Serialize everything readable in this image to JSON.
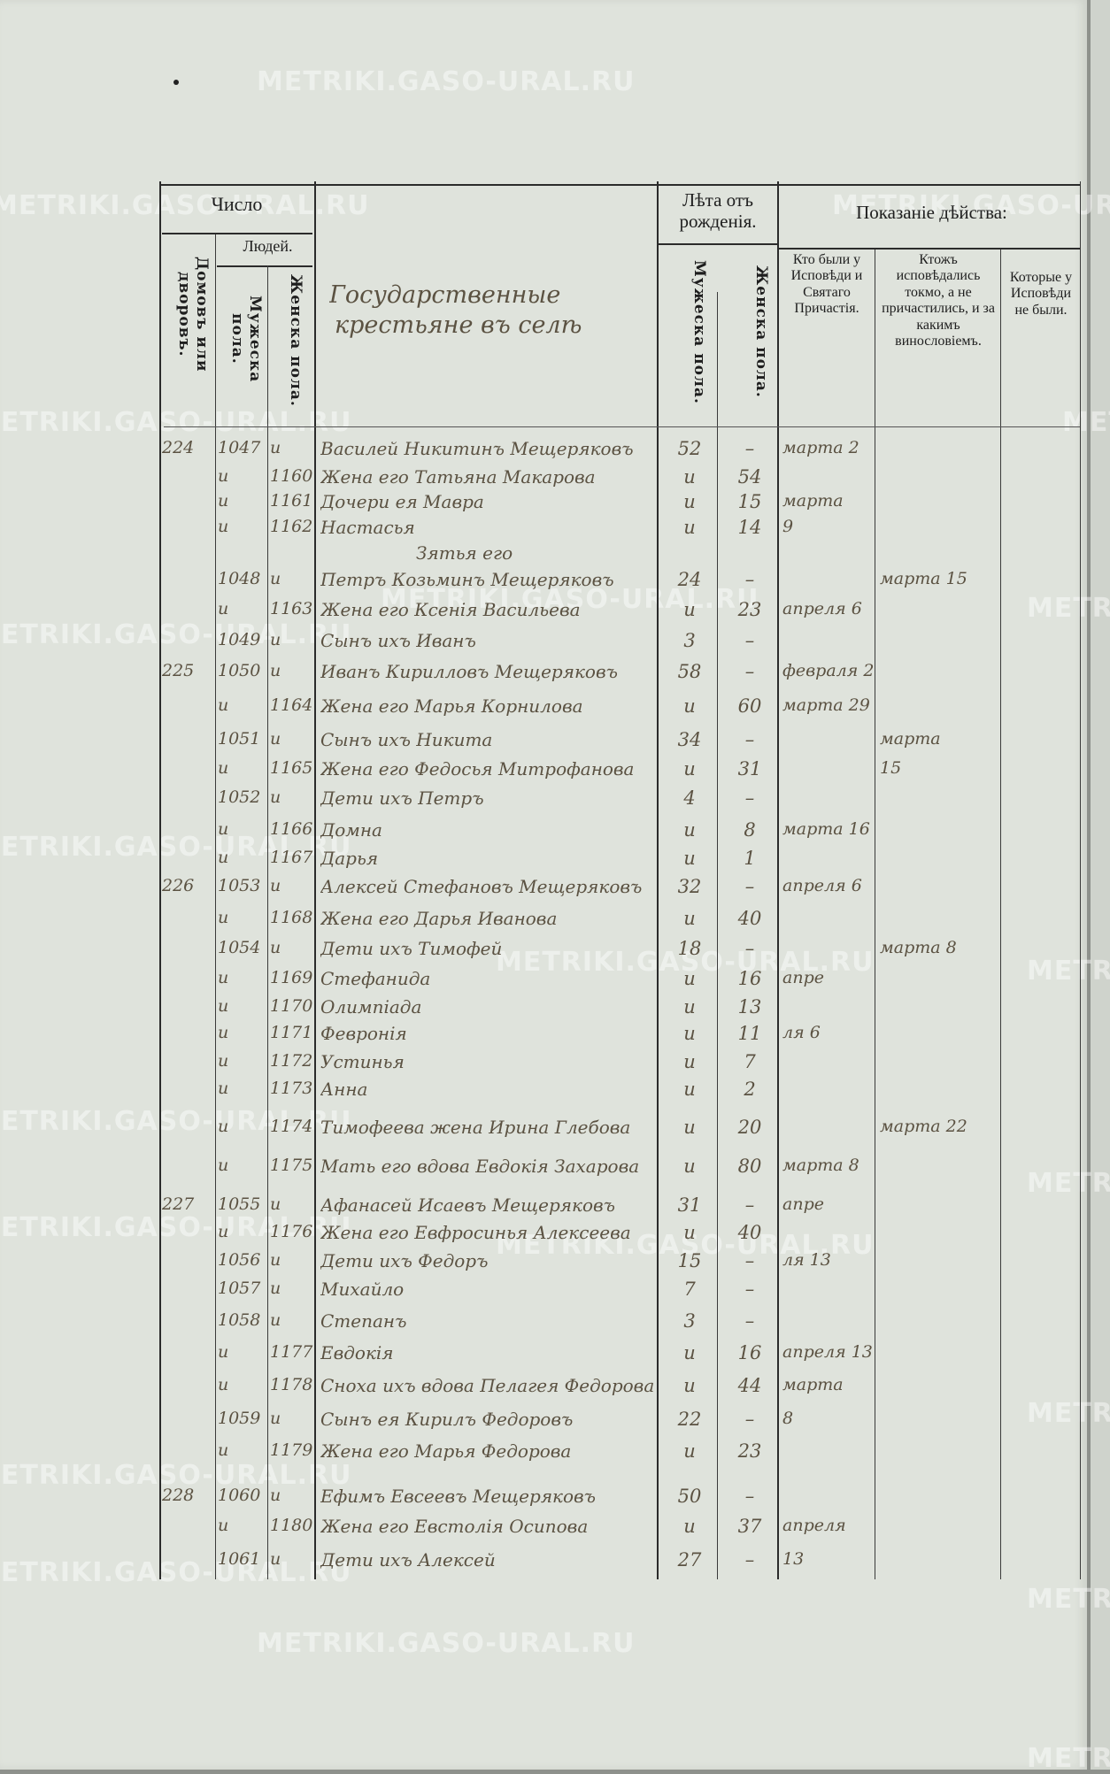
{
  "watermark": "METRIKI.GASO-URAL.RU",
  "header": {
    "chislo": "Число",
    "lyudei": "Людей.",
    "domov": "Домовъ или дворовъ.",
    "muzh_pola": "Мужеска пола.",
    "zhen_pola": "Женска пола.",
    "leta": "Лѣта отъ рожденія.",
    "leta_m": "Мужеска пола.",
    "leta_f": "Женска пола.",
    "pokazanie": "Показаніе дѣйства:",
    "col_a": "Кто были у Исповѣди и Святаго Причастія.",
    "col_b": "Ктожъ исповѣдались токмо, а не причастились, и за какимъ винословіемъ.",
    "col_c": "Которые у Исповѣди не были.",
    "section_title_1": "Государственные",
    "section_title_2": "крестьяне въ селѣ"
  },
  "rows": [
    [
      "224",
      "1047",
      "и",
      "Василей Никитинъ Мещеряковъ",
      "52",
      "–",
      "марта 2",
      ""
    ],
    [
      "",
      "и",
      "1160",
      "Жена его Татьяна Макарова",
      "и",
      "54",
      "",
      ""
    ],
    [
      "",
      "и",
      "1161",
      "Дочери ея Мавра",
      "и",
      "15",
      "марта",
      ""
    ],
    [
      "",
      "и",
      "1162",
      "Настасья",
      "и",
      "14",
      "9",
      ""
    ],
    [
      "",
      "",
      "",
      "Зятья его",
      "",
      "",
      "",
      ""
    ],
    [
      "",
      "1048",
      "и",
      "Петръ Козьминъ Мещеряковъ",
      "24",
      "–",
      "",
      "марта 15"
    ],
    [
      "",
      "и",
      "1163",
      "Жена его Ксенія Васильева",
      "и",
      "23",
      "апреля 6",
      ""
    ],
    [
      "",
      "1049",
      "и",
      "Сынъ ихъ Иванъ",
      "3",
      "–",
      "",
      ""
    ],
    [
      "225",
      "1050",
      "и",
      "Иванъ Кирилловъ Мещеряковъ",
      "58",
      "–",
      "февраля 2",
      ""
    ],
    [
      "",
      "и",
      "1164",
      "Жена его Марья Корнилова",
      "и",
      "60",
      "марта 29",
      ""
    ],
    [
      "",
      "1051",
      "и",
      "Сынъ ихъ Никита",
      "34",
      "–",
      "",
      "марта"
    ],
    [
      "",
      "и",
      "1165",
      "Жена его Федосья Митрофанова",
      "и",
      "31",
      "",
      "15"
    ],
    [
      "",
      "1052",
      "и",
      "Дети ихъ Петръ",
      "4",
      "–",
      "",
      ""
    ],
    [
      "",
      "и",
      "1166",
      "Домна",
      "и",
      "8",
      "марта 16",
      ""
    ],
    [
      "",
      "и",
      "1167",
      "Дарья",
      "и",
      "1",
      "",
      ""
    ],
    [
      "226",
      "1053",
      "и",
      "Алексей Стефановъ Мещеряковъ",
      "32",
      "–",
      "апреля 6",
      ""
    ],
    [
      "",
      "и",
      "1168",
      "Жена его Дарья Иванова",
      "и",
      "40",
      "",
      ""
    ],
    [
      "",
      "1054",
      "и",
      "Дети ихъ Тимофей",
      "18",
      "–",
      "",
      "марта 8"
    ],
    [
      "",
      "и",
      "1169",
      "Стефанида",
      "и",
      "16",
      "апре",
      ""
    ],
    [
      "",
      "и",
      "1170",
      "Олимпіада",
      "и",
      "13",
      "",
      ""
    ],
    [
      "",
      "и",
      "1171",
      "Февронія",
      "и",
      "11",
      "ля 6",
      ""
    ],
    [
      "",
      "и",
      "1172",
      "Устинья",
      "и",
      "7",
      "",
      ""
    ],
    [
      "",
      "и",
      "1173",
      "Анна",
      "и",
      "2",
      "",
      ""
    ],
    [
      "",
      "и",
      "1174",
      "Тимофеева жена Ирина Глебова",
      "и",
      "20",
      "",
      "марта 22"
    ],
    [
      "",
      "и",
      "1175",
      "Мать его вдова Евдокія Захарова",
      "и",
      "80",
      "марта 8",
      ""
    ],
    [
      "227",
      "1055",
      "и",
      "Афанасей Исаевъ Мещеряковъ",
      "31",
      "–",
      "апре",
      ""
    ],
    [
      "",
      "и",
      "1176",
      "Жена его Евфросинья Алексеева",
      "и",
      "40",
      "",
      ""
    ],
    [
      "",
      "1056",
      "и",
      "Дети ихъ Федоръ",
      "15",
      "–",
      "ля 13",
      ""
    ],
    [
      "",
      "1057",
      "и",
      "Михайло",
      "7",
      "–",
      "",
      ""
    ],
    [
      "",
      "1058",
      "и",
      "Степанъ",
      "3",
      "–",
      "",
      ""
    ],
    [
      "",
      "и",
      "1177",
      "Евдокія",
      "и",
      "16",
      "апреля 13",
      ""
    ],
    [
      "",
      "и",
      "1178",
      "Сноха ихъ вдова Пелагея Федорова",
      "и",
      "44",
      "марта",
      ""
    ],
    [
      "",
      "1059",
      "и",
      "Сынъ ея Кирилъ Федоровъ",
      "22",
      "–",
      "8",
      ""
    ],
    [
      "",
      "и",
      "1179",
      "Жена его Марья Федорова",
      "и",
      "23",
      "",
      ""
    ],
    [
      "228",
      "1060",
      "и",
      "Ефимъ Евсеевъ Мещеряковъ",
      "50",
      "–",
      "",
      ""
    ],
    [
      "",
      "и",
      "1180",
      "Жена его Евстолія Осипова",
      "и",
      "37",
      "апреля",
      ""
    ],
    [
      "",
      "1061",
      "и",
      "Дети ихъ Алексей",
      "27",
      "–",
      "13",
      ""
    ]
  ]
}
